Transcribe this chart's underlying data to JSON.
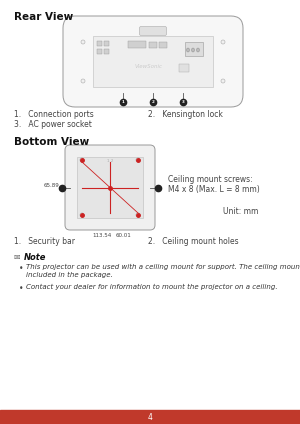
{
  "title": "Rear View",
  "title2": "Bottom View",
  "bg_color": "#ffffff",
  "footer_color": "#c0392b",
  "footer_text": "4",
  "footer_text_color": "#ffffff",
  "text_color": "#444444",
  "rear_label1": "1.   Connection ports",
  "rear_label2": "3.   AC power socket",
  "rear_label3": "2.   Kensington lock",
  "bottom_label1": "1.   Security bar",
  "bottom_label2": "2.   Ceiling mount holes",
  "note_title": "Note",
  "note_bullet1": "This projector can be used with a ceiling mount for support. The ceiling mount is not\nincluded in the package.",
  "note_bullet2": "Contact your dealer for information to mount the projector on a ceiling.",
  "ceiling_line1": "Ceiling mount screws:",
  "ceiling_line2": "M4 x 8 (Max. L = 8 mm)",
  "unit_text": "Unit: mm",
  "dim1": "60.01",
  "dim2": "113.54",
  "dim3": "65.89"
}
